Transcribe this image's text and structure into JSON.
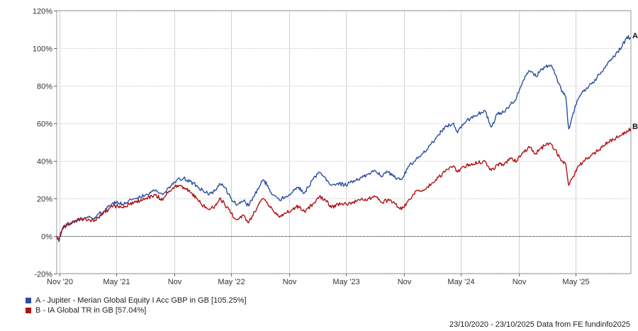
{
  "chart_data": {
    "type": "line",
    "ylim": [
      -20,
      120
    ],
    "y_ticks": [
      -20,
      0,
      20,
      40,
      60,
      80,
      100,
      120
    ],
    "y_tick_labels": [
      "-20%",
      "0%",
      "20%",
      "40%",
      "60%",
      "80%",
      "100%",
      "120%"
    ],
    "x_range": [
      "2020-10-23",
      "2025-10-23"
    ],
    "x_ticks": [
      {
        "date": "2020-11-01",
        "label": "Nov '20"
      },
      {
        "date": "2021-05-01",
        "label": "May '21"
      },
      {
        "date": "2021-11-01",
        "label": "Nov"
      },
      {
        "date": "2022-05-01",
        "label": "May '22"
      },
      {
        "date": "2022-11-01",
        "label": "Nov"
      },
      {
        "date": "2023-05-01",
        "label": "May '23"
      },
      {
        "date": "2023-11-01",
        "label": "Nov"
      },
      {
        "date": "2024-05-01",
        "label": "May '24"
      },
      {
        "date": "2024-11-01",
        "label": "Nov"
      },
      {
        "date": "2025-05-01",
        "label": "May '25"
      }
    ],
    "grid": true,
    "legend_position": "bottom-left",
    "series": [
      {
        "label": "A",
        "name": "A - Jupiter - Merian Global Equity I Acc GBP in GB [105.25%]",
        "color": "#2b4ea2",
        "points": [
          [
            "2020-10-23",
            0
          ],
          [
            "2020-10-30",
            -3
          ],
          [
            "2020-11-10",
            4
          ],
          [
            "2020-11-25",
            6
          ],
          [
            "2020-12-15",
            8
          ],
          [
            "2021-01-10",
            9
          ],
          [
            "2021-02-01",
            10
          ],
          [
            "2021-02-20",
            9
          ],
          [
            "2021-03-05",
            12
          ],
          [
            "2021-03-20",
            13
          ],
          [
            "2021-04-10",
            16
          ],
          [
            "2021-05-01",
            18
          ],
          [
            "2021-05-20",
            17
          ],
          [
            "2021-06-10",
            19
          ],
          [
            "2021-07-01",
            20
          ],
          [
            "2021-08-01",
            22
          ],
          [
            "2021-09-01",
            24
          ],
          [
            "2021-09-25",
            22
          ],
          [
            "2021-10-15",
            26
          ],
          [
            "2021-11-10",
            30
          ],
          [
            "2021-12-01",
            31
          ],
          [
            "2021-12-20",
            29
          ],
          [
            "2022-01-10",
            27
          ],
          [
            "2022-02-01",
            24
          ],
          [
            "2022-02-20",
            22
          ],
          [
            "2022-03-10",
            24
          ],
          [
            "2022-03-25",
            28
          ],
          [
            "2022-04-10",
            26
          ],
          [
            "2022-05-01",
            20
          ],
          [
            "2022-05-15",
            17
          ],
          [
            "2022-06-10",
            19
          ],
          [
            "2022-06-25",
            16
          ],
          [
            "2022-07-15",
            22
          ],
          [
            "2022-08-10",
            30
          ],
          [
            "2022-08-25",
            27
          ],
          [
            "2022-09-10",
            22
          ],
          [
            "2022-10-01",
            19
          ],
          [
            "2022-10-20",
            21
          ],
          [
            "2022-11-10",
            23
          ],
          [
            "2022-12-01",
            26
          ],
          [
            "2022-12-20",
            23
          ],
          [
            "2023-01-15",
            30
          ],
          [
            "2023-02-05",
            34
          ],
          [
            "2023-02-25",
            31
          ],
          [
            "2023-03-15",
            27
          ],
          [
            "2023-04-05",
            28
          ],
          [
            "2023-05-01",
            27
          ],
          [
            "2023-05-20",
            29
          ],
          [
            "2023-06-15",
            31
          ],
          [
            "2023-07-10",
            33
          ],
          [
            "2023-08-01",
            35
          ],
          [
            "2023-08-20",
            32
          ],
          [
            "2023-09-10",
            34
          ],
          [
            "2023-10-05",
            31
          ],
          [
            "2023-10-25",
            30
          ],
          [
            "2023-11-15",
            37
          ],
          [
            "2023-12-10",
            41
          ],
          [
            "2024-01-10",
            45
          ],
          [
            "2024-02-10",
            52
          ],
          [
            "2024-03-10",
            58
          ],
          [
            "2024-04-05",
            60
          ],
          [
            "2024-04-20",
            55
          ],
          [
            "2024-05-10",
            60
          ],
          [
            "2024-06-01",
            63
          ],
          [
            "2024-06-25",
            65
          ],
          [
            "2024-07-15",
            67
          ],
          [
            "2024-08-05",
            58
          ],
          [
            "2024-08-25",
            65
          ],
          [
            "2024-09-15",
            66
          ],
          [
            "2024-10-05",
            70
          ],
          [
            "2024-10-25",
            74
          ],
          [
            "2024-11-15",
            83
          ],
          [
            "2024-12-05",
            88
          ],
          [
            "2024-12-25",
            85
          ],
          [
            "2025-01-20",
            90
          ],
          [
            "2025-02-10",
            91
          ],
          [
            "2025-02-25",
            86
          ],
          [
            "2025-03-15",
            78
          ],
          [
            "2025-03-30",
            74
          ],
          [
            "2025-04-08",
            57
          ],
          [
            "2025-04-20",
            64
          ],
          [
            "2025-05-05",
            72
          ],
          [
            "2025-05-25",
            77
          ],
          [
            "2025-06-20",
            81
          ],
          [
            "2025-07-15",
            86
          ],
          [
            "2025-08-10",
            92
          ],
          [
            "2025-09-05",
            97
          ],
          [
            "2025-09-25",
            101
          ],
          [
            "2025-10-10",
            106
          ],
          [
            "2025-10-23",
            105.25
          ]
        ]
      },
      {
        "label": "B",
        "name": "B - IA Global TR in GB [57.04%]",
        "color": "#b01214",
        "points": [
          [
            "2020-10-23",
            0
          ],
          [
            "2020-10-30",
            -2
          ],
          [
            "2020-11-10",
            4
          ],
          [
            "2020-11-25",
            6
          ],
          [
            "2020-12-15",
            8
          ],
          [
            "2021-01-10",
            9
          ],
          [
            "2021-02-01",
            9
          ],
          [
            "2021-02-20",
            8
          ],
          [
            "2021-03-05",
            10
          ],
          [
            "2021-03-20",
            12
          ],
          [
            "2021-04-10",
            15
          ],
          [
            "2021-05-01",
            16
          ],
          [
            "2021-05-20",
            15
          ],
          [
            "2021-06-10",
            17
          ],
          [
            "2021-07-01",
            18
          ],
          [
            "2021-08-01",
            20
          ],
          [
            "2021-09-01",
            22
          ],
          [
            "2021-09-25",
            19
          ],
          [
            "2021-10-15",
            24
          ],
          [
            "2021-11-10",
            27
          ],
          [
            "2021-12-01",
            26
          ],
          [
            "2021-12-20",
            24
          ],
          [
            "2022-01-10",
            20
          ],
          [
            "2022-02-01",
            16
          ],
          [
            "2022-02-20",
            14
          ],
          [
            "2022-03-10",
            16
          ],
          [
            "2022-03-25",
            20
          ],
          [
            "2022-04-10",
            17
          ],
          [
            "2022-05-01",
            12
          ],
          [
            "2022-05-15",
            9
          ],
          [
            "2022-06-10",
            11
          ],
          [
            "2022-06-25",
            7
          ],
          [
            "2022-07-15",
            13
          ],
          [
            "2022-08-10",
            20
          ],
          [
            "2022-08-25",
            17
          ],
          [
            "2022-09-10",
            14
          ],
          [
            "2022-10-01",
            10
          ],
          [
            "2022-10-20",
            12
          ],
          [
            "2022-11-10",
            14
          ],
          [
            "2022-12-01",
            16
          ],
          [
            "2022-12-20",
            13
          ],
          [
            "2023-01-15",
            17
          ],
          [
            "2023-02-05",
            21
          ],
          [
            "2023-02-25",
            19
          ],
          [
            "2023-03-15",
            15
          ],
          [
            "2023-04-05",
            17
          ],
          [
            "2023-05-01",
            17
          ],
          [
            "2023-05-20",
            18
          ],
          [
            "2023-06-15",
            19
          ],
          [
            "2023-07-10",
            20
          ],
          [
            "2023-08-01",
            21
          ],
          [
            "2023-08-20",
            18
          ],
          [
            "2023-09-10",
            19
          ],
          [
            "2023-10-05",
            17
          ],
          [
            "2023-10-25",
            14
          ],
          [
            "2023-11-15",
            19
          ],
          [
            "2023-12-10",
            24
          ],
          [
            "2024-01-10",
            25
          ],
          [
            "2024-02-10",
            30
          ],
          [
            "2024-03-10",
            34
          ],
          [
            "2024-04-05",
            37
          ],
          [
            "2024-04-20",
            34
          ],
          [
            "2024-05-10",
            37
          ],
          [
            "2024-06-01",
            38
          ],
          [
            "2024-06-25",
            39
          ],
          [
            "2024-07-15",
            40
          ],
          [
            "2024-08-05",
            35
          ],
          [
            "2024-08-25",
            38
          ],
          [
            "2024-09-15",
            38
          ],
          [
            "2024-10-05",
            41
          ],
          [
            "2024-10-25",
            40
          ],
          [
            "2024-11-15",
            45
          ],
          [
            "2024-12-05",
            47
          ],
          [
            "2024-12-25",
            44
          ],
          [
            "2025-01-20",
            48
          ],
          [
            "2025-02-10",
            49
          ],
          [
            "2025-02-25",
            46
          ],
          [
            "2025-03-15",
            40
          ],
          [
            "2025-03-30",
            38
          ],
          [
            "2025-04-08",
            27
          ],
          [
            "2025-04-20",
            31
          ],
          [
            "2025-05-05",
            36
          ],
          [
            "2025-05-25",
            40
          ],
          [
            "2025-06-20",
            43
          ],
          [
            "2025-07-15",
            46
          ],
          [
            "2025-08-10",
            50
          ],
          [
            "2025-09-05",
            52
          ],
          [
            "2025-09-25",
            54
          ],
          [
            "2025-10-10",
            56
          ],
          [
            "2025-10-23",
            57.04
          ]
        ]
      }
    ]
  },
  "footer": {
    "date_range": "23/10/2020 - 23/10/2025",
    "source": "Data from FE fundinfo2025"
  }
}
